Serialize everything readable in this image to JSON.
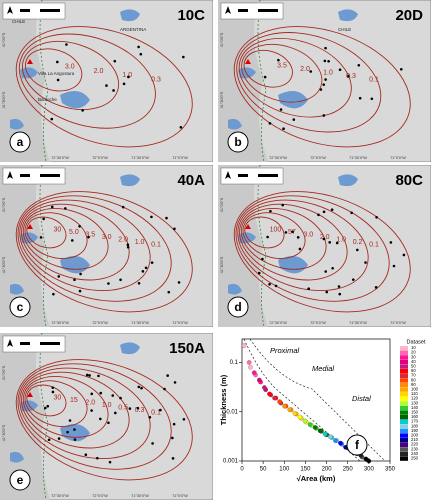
{
  "panels": [
    {
      "title": "10C",
      "letter": "a",
      "contours": [
        "3.0",
        "2.0",
        "1.0",
        "0.3"
      ],
      "places": [
        "ARGENTINA",
        "CHILE",
        "Villa La Angostura",
        "Bariloche"
      ]
    },
    {
      "title": "20D",
      "letter": "b",
      "contours": [
        "3.5",
        "2.0",
        "1.0",
        "0.3",
        "0.1"
      ],
      "places": [
        "CHILE"
      ]
    },
    {
      "title": "40A",
      "letter": "c",
      "contours": [
        "30",
        "5.0",
        "3.5",
        "3.0",
        "2.0",
        "1.0",
        "0.1"
      ],
      "places": []
    },
    {
      "title": "80C",
      "letter": "d",
      "contours": [
        "100",
        "57",
        "3.0",
        "2.0",
        "1.0",
        "0.2",
        "0.1"
      ],
      "places": []
    },
    {
      "title": "150A",
      "letter": "e",
      "contours": [
        "30",
        "15",
        "2.0",
        "1.0",
        "0.5",
        "0.3",
        "0.1"
      ],
      "places": []
    }
  ],
  "map_axes": {
    "x": [
      "72°30'0\"W",
      "72°0'0\"W",
      "71°30'0\"W",
      "71°0'0\"W"
    ],
    "y": [
      "41°0'0\"S",
      "41°30'0\"S"
    ]
  },
  "chart_data": {
    "type": "scatter",
    "letter": "f",
    "xlabel": "√Area (km)",
    "ylabel": "Thickness (m)",
    "legend_title": "Dataset",
    "zones": [
      "Proximal",
      "Medial",
      "Distal"
    ],
    "log_y": true,
    "xlim": [
      0,
      350
    ],
    "xticks": [
      0,
      50,
      100,
      150,
      200,
      250,
      300,
      350
    ],
    "ylim": [
      0.001,
      0.3
    ],
    "yticks": [
      0.001,
      0.01,
      0.1
    ],
    "series": [
      {
        "name": "10",
        "color": "#ffb6c1",
        "x": [
          5,
          20
        ],
        "values": [
          0.22,
          0.08
        ]
      },
      {
        "name": "20",
        "color": "#ff69b4",
        "x": [
          17,
          32
        ],
        "values": [
          0.1,
          0.056
        ]
      },
      {
        "name": "30",
        "color": "#ff1493",
        "x": [
          29,
          44
        ],
        "values": [
          0.062,
          0.04
        ]
      },
      {
        "name": "40",
        "color": "#e4007c",
        "x": [
          41,
          56
        ],
        "values": [
          0.044,
          0.028
        ]
      },
      {
        "name": "50",
        "color": "#c71585",
        "x": [
          53,
          68
        ],
        "values": [
          0.031,
          0.022
        ]
      },
      {
        "name": "60",
        "color": "#ff0000",
        "x": [
          65,
          80
        ],
        "values": [
          0.023,
          0.019
        ]
      },
      {
        "name": "70",
        "color": "#e32636",
        "x": [
          77,
          92
        ],
        "values": [
          0.019,
          0.015
        ]
      },
      {
        "name": "80",
        "color": "#ff4500",
        "x": [
          89,
          104
        ],
        "values": [
          0.016,
          0.013
        ]
      },
      {
        "name": "90",
        "color": "#ff8c00",
        "x": [
          101,
          116
        ],
        "values": [
          0.013,
          0.011
        ]
      },
      {
        "name": "100",
        "color": "#ffa500",
        "x": [
          113,
          128
        ],
        "values": [
          0.011,
          0.009
        ]
      },
      {
        "name": "110",
        "color": "#ffd700",
        "x": [
          125,
          140
        ],
        "values": [
          0.0093,
          0.0074
        ]
      },
      {
        "name": "120",
        "color": "#ffff00",
        "x": [
          137,
          152
        ],
        "values": [
          0.0078,
          0.0062
        ]
      },
      {
        "name": "130",
        "color": "#adff2f",
        "x": [
          149,
          164
        ],
        "values": [
          0.0065,
          0.0053
        ]
      },
      {
        "name": "140",
        "color": "#32cd32",
        "x": [
          161,
          176
        ],
        "values": [
          0.0055,
          0.0046
        ]
      },
      {
        "name": "150",
        "color": "#008000",
        "x": [
          173,
          188
        ],
        "values": [
          0.0048,
          0.004
        ]
      },
      {
        "name": "160",
        "color": "#006400",
        "x": [
          185,
          200
        ],
        "values": [
          0.0041,
          0.0034
        ]
      },
      {
        "name": "170",
        "color": "#00ced1",
        "x": [
          197,
          212
        ],
        "values": [
          0.0035,
          0.003
        ]
      },
      {
        "name": "180",
        "color": "#87ceeb",
        "x": [
          209,
          224
        ],
        "values": [
          0.0031,
          0.0026
        ]
      },
      {
        "name": "190",
        "color": "#1e90ff",
        "x": [
          221,
          236
        ],
        "values": [
          0.0026,
          0.0022
        ]
      },
      {
        "name": "200",
        "color": "#0000ff",
        "x": [
          233,
          248
        ],
        "values": [
          0.0023,
          0.0019
        ]
      },
      {
        "name": "210",
        "color": "#00008b",
        "x": [
          245,
          260
        ],
        "values": [
          0.0019,
          0.0016
        ]
      },
      {
        "name": "220",
        "color": "#4b0082",
        "x": [
          257,
          272
        ],
        "values": [
          0.0017,
          0.0014
        ]
      },
      {
        "name": "230",
        "color": "#555555",
        "x": [
          269,
          284
        ],
        "values": [
          0.0015,
          0.0012
        ]
      },
      {
        "name": "240",
        "color": "#222222",
        "x": [
          281,
          296
        ],
        "values": [
          0.0013,
          0.00105
        ]
      },
      {
        "name": "250",
        "color": "#000000",
        "x": [
          293,
          300
        ],
        "values": [
          0.0011,
          0.001
        ]
      }
    ]
  }
}
